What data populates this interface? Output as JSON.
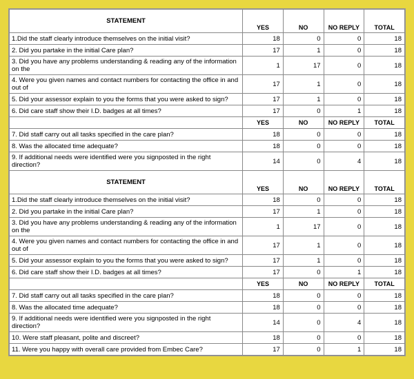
{
  "headers": {
    "statement": "STATEMENT",
    "yes": "YES",
    "no": "NO",
    "no_reply": "NO REPLY",
    "total": "TOTAL"
  },
  "sections": [
    {
      "rows1": [
        {
          "q": "1.Did the staff clearly introduce themselves on the initial visit?",
          "yes": 18,
          "no": 0,
          "nr": 0,
          "total": 18
        },
        {
          "q": "2. Did you partake in the initial Care plan?",
          "yes": 17,
          "no": 1,
          "nr": 0,
          "total": 18
        },
        {
          "q": "3. Did you have any problems understanding & reading any of the information on the",
          "yes": 1,
          "no": 17,
          "nr": 0,
          "total": 18
        },
        {
          "q": "4. Were you given names and contact numbers for contacting the office in and out of",
          "yes": 17,
          "no": 1,
          "nr": 0,
          "total": 18
        },
        {
          "q": "5. Did your assessor explain to you the forms that you were asked to sign?",
          "yes": 17,
          "no": 1,
          "nr": 0,
          "total": 18
        },
        {
          "q": "6. Did care staff show their I.D. badges at all times?",
          "yes": 17,
          "no": 0,
          "nr": 1,
          "total": 18
        }
      ],
      "rows2": [
        {
          "q": "7. Did staff carry out all tasks specified in the care plan?",
          "yes": 18,
          "no": 0,
          "nr": 0,
          "total": 18
        },
        {
          "q": "8. Was the allocated time adequate?",
          "yes": 18,
          "no": 0,
          "nr": 0,
          "total": 18
        },
        {
          "q": "9. If additional needs were identified were you signposted in the right direction?",
          "yes": 14,
          "no": 0,
          "nr": 4,
          "total": 18
        }
      ]
    },
    {
      "rows1": [
        {
          "q": "1.Did the staff clearly introduce themselves on the initial visit?",
          "yes": 18,
          "no": 0,
          "nr": 0,
          "total": 18
        },
        {
          "q": "2. Did you partake in the initial Care plan?",
          "yes": 17,
          "no": 1,
          "nr": 0,
          "total": 18
        },
        {
          "q": "3. Did you have any problems understanding & reading any of the information on the",
          "yes": 1,
          "no": 17,
          "nr": 0,
          "total": 18
        },
        {
          "q": "4. Were you given names and contact numbers for contacting the office in and out of",
          "yes": 17,
          "no": 1,
          "nr": 0,
          "total": 18
        },
        {
          "q": "5. Did your assessor explain to you the forms that you were asked to sign?",
          "yes": 17,
          "no": 1,
          "nr": 0,
          "total": 18
        },
        {
          "q": "6. Did care staff show their I.D. badges at all times?",
          "yes": 17,
          "no": 0,
          "nr": 1,
          "total": 18
        }
      ],
      "rows2": [
        {
          "q": "7. Did staff carry out all tasks specified in the care plan?",
          "yes": 18,
          "no": 0,
          "nr": 0,
          "total": 18
        },
        {
          "q": "8. Was the allocated time adequate?",
          "yes": 18,
          "no": 0,
          "nr": 0,
          "total": 18
        },
        {
          "q": "9. If additional needs were identified were you signposted in the right direction?",
          "yes": 14,
          "no": 0,
          "nr": 4,
          "total": 18
        },
        {
          "q": "10. Were staff pleasant, polite and discreet?",
          "yes": 18,
          "no": 0,
          "nr": 0,
          "total": 18
        },
        {
          "q": "11. Were you happy with overall care provided from Embec Care?",
          "yes": 17,
          "no": 0,
          "nr": 1,
          "total": 18
        }
      ]
    }
  ]
}
